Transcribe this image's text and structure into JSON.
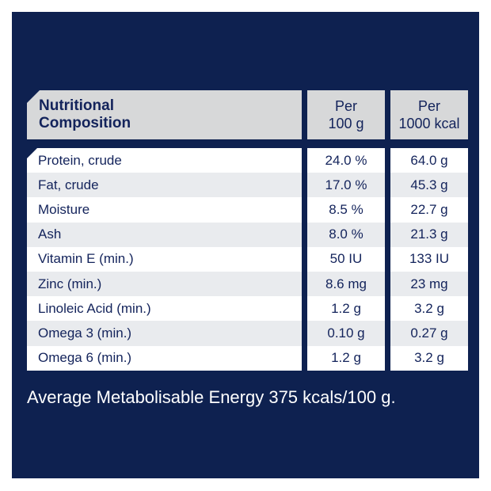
{
  "colors": {
    "panel_navy": "#0e2150",
    "header_gray": "#d7d8d9",
    "row_alt_gray": "#e9ebee",
    "row_white": "#ffffff",
    "text_navy": "#13235b",
    "footer_text": "#ffffff"
  },
  "table": {
    "header": {
      "col1_line1": "Nutritional",
      "col1_line2": "Composition",
      "col2_line1": "Per",
      "col2_line2": "100 g",
      "col3_line1": "Per",
      "col3_line2": "1000 kcal"
    },
    "rows": [
      {
        "label": "Protein, crude",
        "per_100g": "24.0 %",
        "per_1000kcal": "64.0 g"
      },
      {
        "label": "Fat, crude",
        "per_100g": "17.0 %",
        "per_1000kcal": "45.3 g"
      },
      {
        "label": "Moisture",
        "per_100g": "8.5 %",
        "per_1000kcal": "22.7 g"
      },
      {
        "label": "Ash",
        "per_100g": "8.0 %",
        "per_1000kcal": "21.3 g"
      },
      {
        "label": "Vitamin E (min.)",
        "per_100g": "50 IU",
        "per_1000kcal": "133 IU"
      },
      {
        "label": "Zinc (min.)",
        "per_100g": "8.6 mg",
        "per_1000kcal": "23 mg"
      },
      {
        "label": "Linoleic Acid (min.)",
        "per_100g": "1.2 g",
        "per_1000kcal": "3.2 g"
      },
      {
        "label": "Omega 3 (min.)",
        "per_100g": "0.10 g",
        "per_1000kcal": "0.27 g"
      },
      {
        "label": "Omega 6 (min.)",
        "per_100g": "1.2 g",
        "per_1000kcal": "3.2 g"
      }
    ]
  },
  "footer": {
    "text": "Average Metabolisable Energy 375 kcals/100 g."
  }
}
